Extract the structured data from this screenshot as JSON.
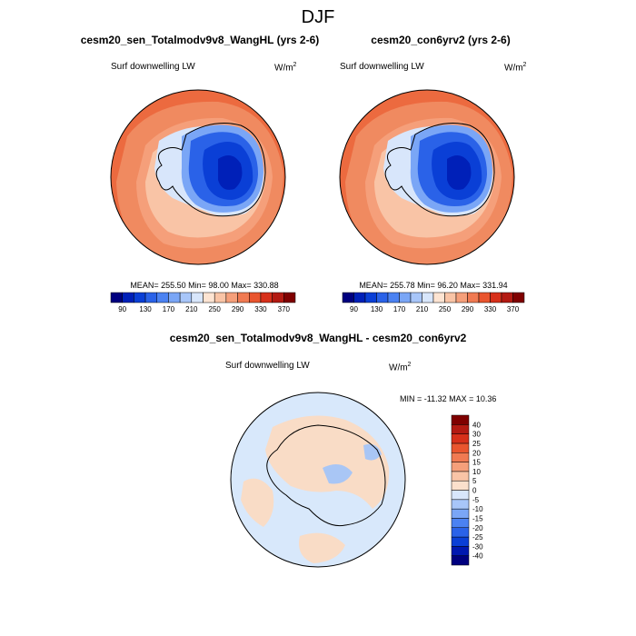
{
  "figure": {
    "title": "DJF"
  },
  "colors": {
    "ocean_warm": "#ec6a3f",
    "ocean_mid": "#f08a60",
    "ocean_light": "#f8c0a0",
    "land_cold": "#0a3fd6",
    "land_deep": "#0030c8",
    "land_mid": "#2a6af0",
    "land_light": "#9cc0f8",
    "coast": "#000000",
    "diff_bg": "#d8e8fb",
    "diff_pos": "#f9dcc6",
    "diff_neg": "#a9c6f5"
  },
  "chart_data": [
    {
      "type": "heatmap",
      "projection": "south-polar-stereographic",
      "title": "cesm20_sen_Totalmodv9v8_WangHL (yrs 2-6)",
      "variable_label": "Surf downwelling LW",
      "units_base": "W/m",
      "units_exp": "2",
      "stats_text": "MEAN= 255.50  Min=  98.00  Max= 330.88",
      "stats": {
        "mean": 255.5,
        "min": 98.0,
        "max": 330.88
      },
      "colorbar": {
        "levels": [
          90,
          110,
          130,
          150,
          170,
          190,
          210,
          230,
          250,
          270,
          290,
          310,
          330,
          350,
          370
        ],
        "tick_labels": [
          "90",
          "130",
          "170",
          "210",
          "250",
          "290",
          "330",
          "370"
        ],
        "colors": [
          "#00007f",
          "#0020b8",
          "#0a3fd6",
          "#2a62e8",
          "#4b82f2",
          "#7aa6f6",
          "#a8c6f9",
          "#d8e6fb",
          "#fde4d2",
          "#f9c4a6",
          "#f59f7a",
          "#f07a52",
          "#e9552e",
          "#d7301a",
          "#b31a12",
          "#7f0000"
        ]
      }
    },
    {
      "type": "heatmap",
      "projection": "south-polar-stereographic",
      "title": "cesm20_con6yrv2 (yrs 2-6)",
      "variable_label": "Surf downwelling LW",
      "units_base": "W/m",
      "units_exp": "2",
      "stats_text": "MEAN= 255.78  Min=  96.20  Max= 331.94",
      "stats": {
        "mean": 255.78,
        "min": 96.2,
        "max": 331.94
      },
      "colorbar": {
        "levels": [
          90,
          110,
          130,
          150,
          170,
          190,
          210,
          230,
          250,
          270,
          290,
          310,
          330,
          350,
          370
        ],
        "tick_labels": [
          "90",
          "130",
          "170",
          "210",
          "250",
          "290",
          "330",
          "370"
        ],
        "colors": [
          "#00007f",
          "#0020b8",
          "#0a3fd6",
          "#2a62e8",
          "#4b82f2",
          "#7aa6f6",
          "#a8c6f9",
          "#d8e6fb",
          "#fde4d2",
          "#f9c4a6",
          "#f59f7a",
          "#f07a52",
          "#e9552e",
          "#d7301a",
          "#b31a12",
          "#7f0000"
        ]
      }
    },
    {
      "type": "heatmap",
      "projection": "south-polar-stereographic",
      "title": "cesm20_sen_Totalmodv9v8_WangHL - cesm20_con6yrv2",
      "variable_label": "Surf downwelling LW",
      "units_base": "W/m",
      "units_exp": "2",
      "stats_text": "MIN = -11.32 MAX =  10.36",
      "stats": {
        "min": -11.32,
        "max": 10.36
      },
      "colorbar": {
        "orientation": "vertical",
        "levels": [
          -40,
          -30,
          -25,
          -20,
          -15,
          -10,
          -5,
          0,
          5,
          10,
          15,
          20,
          25,
          30,
          40
        ],
        "tick_labels": [
          "-40",
          "-30",
          "-25",
          "-20",
          "-15",
          "-10",
          "-5",
          "0",
          "5",
          "10",
          "15",
          "20",
          "25",
          "30",
          "40"
        ],
        "colors": [
          "#00007f",
          "#0018b0",
          "#0a3fd6",
          "#2a62e8",
          "#4b82f2",
          "#7aa6f6",
          "#a8c6f9",
          "#d8e6fb",
          "#fbe0cc",
          "#f9c4a6",
          "#f59f7a",
          "#f07a52",
          "#e9552e",
          "#d7301a",
          "#b31a12",
          "#7f0000"
        ]
      }
    }
  ]
}
